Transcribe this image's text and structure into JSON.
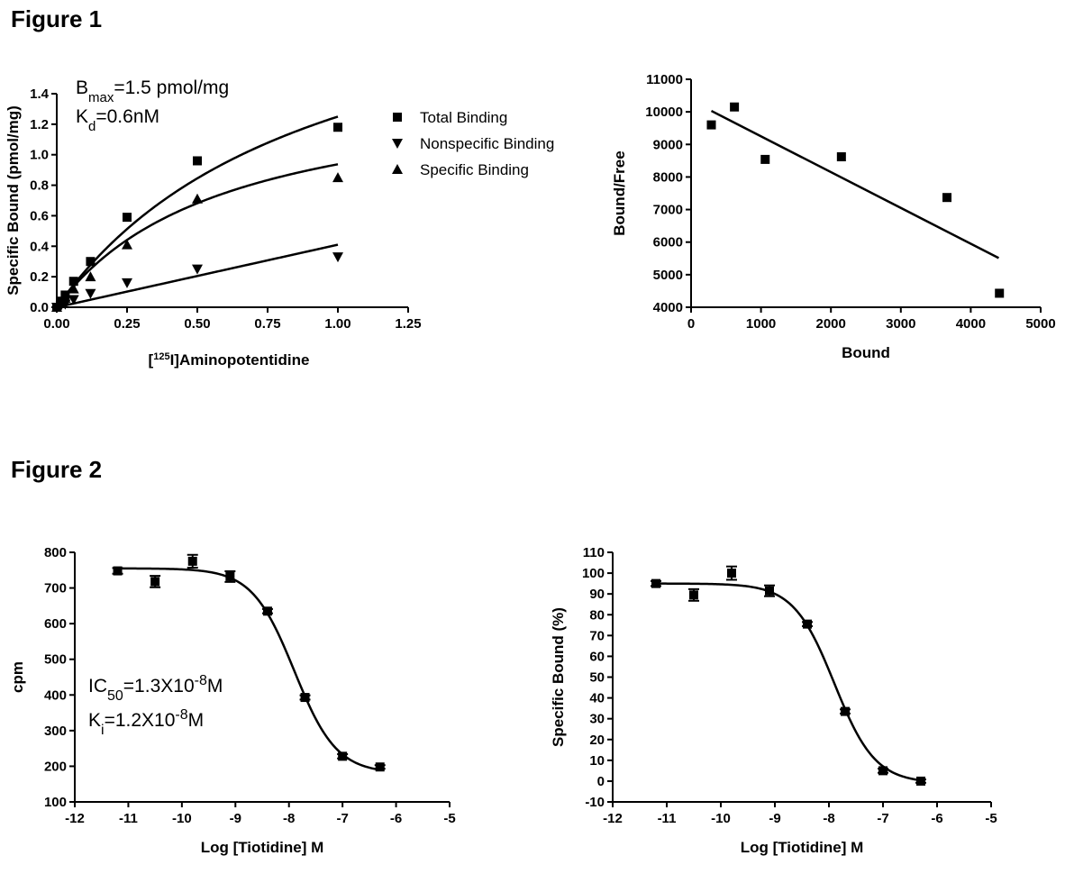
{
  "figure1": {
    "title": "Figure 1"
  },
  "figure2": {
    "title": "Figure 2"
  },
  "chart_data": [
    {
      "id": "saturation",
      "type": "scatter",
      "xlabel": "[125I]Aminopotentidine",
      "xlabel_sup": "125",
      "xlabel_pre": "[",
      "xlabel_post": "I]Aminopotentidine",
      "ylabel": "Specific Bound (pmol/mg)",
      "xlim": [
        0,
        1.25
      ],
      "ylim": [
        0,
        1.4
      ],
      "xticks": [
        "0.00",
        "0.25",
        "0.50",
        "0.75",
        "1.00",
        "1.25"
      ],
      "yticks": [
        "0.0",
        "0.2",
        "0.4",
        "0.6",
        "0.8",
        "1.0",
        "1.2",
        "1.4"
      ],
      "annotations": {
        "bmax_main": "B",
        "bmax_sub": "max",
        "bmax_rest": "=1.5 pmol/mg",
        "kd_main": "K",
        "kd_sub": "d",
        "kd_rest": "=0.6nM"
      },
      "legend": [
        "Total Binding",
        "Nonspecific Binding",
        "Specific Binding"
      ],
      "series": [
        {
          "name": "Total Binding",
          "marker": "square",
          "x": [
            0,
            0.015,
            0.03,
            0.06,
            0.12,
            0.25,
            0.5,
            1.0
          ],
          "y": [
            0.0,
            0.04,
            0.08,
            0.17,
            0.3,
            0.59,
            0.96,
            1.18
          ],
          "fit": {
            "model": "hyperbola",
            "bmax": 2.4,
            "kd": 0.92
          }
        },
        {
          "name": "Nonspecific Binding",
          "marker": "triangle-down",
          "x": [
            0,
            0.015,
            0.03,
            0.06,
            0.12,
            0.25,
            0.5,
            1.0
          ],
          "y": [
            0.0,
            0.01,
            0.02,
            0.05,
            0.09,
            0.16,
            0.25,
            0.33
          ],
          "fit": {
            "model": "linear",
            "slope": 0.41,
            "intercept": 0
          }
        },
        {
          "name": "Specific Binding",
          "marker": "triangle-up",
          "x": [
            0,
            0.015,
            0.03,
            0.06,
            0.12,
            0.25,
            0.5,
            1.0
          ],
          "y": [
            0.0,
            0.03,
            0.06,
            0.12,
            0.2,
            0.41,
            0.71,
            0.85
          ],
          "fit": {
            "model": "hyperbola",
            "bmax": 1.5,
            "kd": 0.6
          }
        }
      ]
    },
    {
      "id": "scatchard",
      "type": "scatter",
      "xlabel": "Bound",
      "ylabel": "Bound/Free",
      "xlim": [
        0,
        5000
      ],
      "ylim": [
        4000,
        11000
      ],
      "xticks": [
        "0",
        "1000",
        "2000",
        "3000",
        "4000",
        "5000"
      ],
      "yticks": [
        "4000",
        "5000",
        "6000",
        "7000",
        "8000",
        "9000",
        "10000",
        "11000"
      ],
      "series": [
        {
          "name": "",
          "marker": "square",
          "x": [
            290,
            620,
            1060,
            2150,
            3660,
            4410
          ],
          "y": [
            9600,
            10150,
            8540,
            8620,
            7370,
            4430
          ]
        }
      ],
      "fit_line": {
        "x": [
          290,
          4400
        ],
        "y": [
          10030,
          5510
        ]
      }
    },
    {
      "id": "competition-cpm",
      "type": "scatter",
      "xlabel": "Log [Tiotidine] M",
      "ylabel": "cpm",
      "xlim": [
        -12,
        -5
      ],
      "ylim": [
        100,
        800
      ],
      "xticks": [
        "-12",
        "-11",
        "-10",
        "-9",
        "-8",
        "-7",
        "-6",
        "-5"
      ],
      "yticks": [
        "100",
        "200",
        "300",
        "400",
        "500",
        "600",
        "700",
        "800"
      ],
      "annotations": {
        "ic50_main": "IC",
        "ic50_sub": "50",
        "ic50_rest": "=1.3X10",
        "ic50_exp": "-8",
        "ic50_unit": "M",
        "ki_main": "K",
        "ki_sub": "i",
        "ki_rest": "=1.2X10",
        "ki_exp": "-8",
        "ki_unit": "M"
      },
      "series": [
        {
          "name": "",
          "marker": "square",
          "x": [
            -11.2,
            -10.5,
            -9.8,
            -9.1,
            -8.4,
            -7.7,
            -7.0,
            -6.3
          ],
          "y": [
            748,
            718,
            775,
            732,
            635,
            393,
            228,
            198
          ],
          "err": [
            8,
            16,
            18,
            15,
            6,
            6,
            6,
            5
          ],
          "fit": {
            "model": "sigmoid",
            "top": 755,
            "bottom": 180,
            "logec50": -7.9,
            "hill": 1.1
          }
        }
      ]
    },
    {
      "id": "competition-percent",
      "type": "scatter",
      "xlabel": "Log [Tiotidine] M",
      "ylabel": "Specific Bound (%)",
      "xlim": [
        -12,
        -5
      ],
      "ylim": [
        -10,
        110
      ],
      "xticks": [
        "-12",
        "-11",
        "-10",
        "-9",
        "-8",
        "-7",
        "-6",
        "-5"
      ],
      "yticks": [
        "-10",
        "0",
        "10",
        "20",
        "30",
        "40",
        "50",
        "60",
        "70",
        "80",
        "90",
        "100",
        "110"
      ],
      "series": [
        {
          "name": "",
          "marker": "square",
          "x": [
            -11.2,
            -10.5,
            -9.8,
            -9.1,
            -8.4,
            -7.7,
            -7.0,
            -6.3
          ],
          "y": [
            95,
            89.5,
            100,
            91.5,
            75.5,
            33.5,
            5,
            0
          ],
          "err": [
            1.2,
            2.8,
            3.2,
            2.6,
            1.0,
            1.0,
            1.0,
            0.8
          ],
          "fit": {
            "model": "sigmoid",
            "top": 95,
            "bottom": -1,
            "logec50": -7.9,
            "hill": 1.15
          }
        }
      ]
    }
  ]
}
